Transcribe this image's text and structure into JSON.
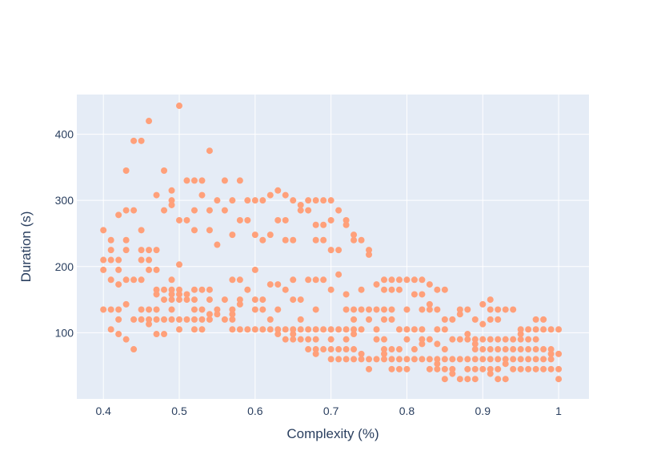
{
  "chart_data": {
    "type": "scatter",
    "title": "",
    "xlabel": "Complexity (%)",
    "ylabel": "Duration (s)",
    "xlim": [
      0.365,
      1.04
    ],
    "ylim": [
      0,
      460
    ],
    "x_ticks": [
      0.4,
      0.5,
      0.6,
      0.7,
      0.8,
      0.9,
      1
    ],
    "x_tick_labels": [
      "0.4",
      "0.5",
      "0.6",
      "0.7",
      "0.8",
      "0.9",
      "1"
    ],
    "y_ticks": [
      100,
      200,
      300,
      400
    ],
    "y_tick_labels": [
      "100",
      "200",
      "300",
      "400"
    ],
    "grid": true,
    "legend": "none",
    "colors": {
      "background": "#e5ecf6",
      "grid": "#ffffff",
      "marker": "#FFA07A",
      "text": "#2a3f5f"
    },
    "points": [
      [
        0.4,
        255
      ],
      [
        0.4,
        210
      ],
      [
        0.4,
        195
      ],
      [
        0.4,
        135
      ],
      [
        0.41,
        240
      ],
      [
        0.41,
        225
      ],
      [
        0.41,
        210
      ],
      [
        0.41,
        180
      ],
      [
        0.41,
        135
      ],
      [
        0.41,
        105
      ],
      [
        0.42,
        278
      ],
      [
        0.42,
        210
      ],
      [
        0.42,
        195
      ],
      [
        0.42,
        173
      ],
      [
        0.42,
        135
      ],
      [
        0.42,
        120
      ],
      [
        0.42,
        98
      ],
      [
        0.43,
        345
      ],
      [
        0.43,
        285
      ],
      [
        0.43,
        240
      ],
      [
        0.43,
        225
      ],
      [
        0.43,
        180
      ],
      [
        0.43,
        143
      ],
      [
        0.43,
        90
      ],
      [
        0.44,
        390
      ],
      [
        0.44,
        285
      ],
      [
        0.44,
        180
      ],
      [
        0.44,
        120
      ],
      [
        0.44,
        75
      ],
      [
        0.45,
        390
      ],
      [
        0.45,
        255
      ],
      [
        0.45,
        225
      ],
      [
        0.45,
        210
      ],
      [
        0.45,
        180
      ],
      [
        0.45,
        135
      ],
      [
        0.45,
        120
      ],
      [
        0.46,
        420
      ],
      [
        0.46,
        225
      ],
      [
        0.46,
        210
      ],
      [
        0.46,
        195
      ],
      [
        0.46,
        135
      ],
      [
        0.46,
        120
      ],
      [
        0.46,
        113
      ],
      [
        0.47,
        308
      ],
      [
        0.47,
        225
      ],
      [
        0.47,
        195
      ],
      [
        0.47,
        165
      ],
      [
        0.47,
        158
      ],
      [
        0.47,
        135
      ],
      [
        0.47,
        120
      ],
      [
        0.47,
        98
      ],
      [
        0.48,
        345
      ],
      [
        0.48,
        285
      ],
      [
        0.48,
        165
      ],
      [
        0.48,
        150
      ],
      [
        0.48,
        120
      ],
      [
        0.48,
        98
      ],
      [
        0.49,
        315
      ],
      [
        0.49,
        300
      ],
      [
        0.49,
        293
      ],
      [
        0.49,
        180
      ],
      [
        0.49,
        165
      ],
      [
        0.49,
        158
      ],
      [
        0.49,
        150
      ],
      [
        0.49,
        135
      ],
      [
        0.49,
        120
      ],
      [
        0.5,
        443
      ],
      [
        0.5,
        270
      ],
      [
        0.5,
        203
      ],
      [
        0.5,
        165
      ],
      [
        0.5,
        158
      ],
      [
        0.5,
        150
      ],
      [
        0.5,
        120
      ],
      [
        0.5,
        105
      ],
      [
        0.51,
        330
      ],
      [
        0.51,
        270
      ],
      [
        0.51,
        158
      ],
      [
        0.51,
        150
      ],
      [
        0.51,
        120
      ],
      [
        0.52,
        330
      ],
      [
        0.52,
        285
      ],
      [
        0.52,
        255
      ],
      [
        0.52,
        165
      ],
      [
        0.52,
        150
      ],
      [
        0.52,
        135
      ],
      [
        0.52,
        120
      ],
      [
        0.52,
        105
      ],
      [
        0.53,
        330
      ],
      [
        0.53,
        308
      ],
      [
        0.53,
        165
      ],
      [
        0.53,
        135
      ],
      [
        0.53,
        120
      ],
      [
        0.53,
        105
      ],
      [
        0.54,
        375
      ],
      [
        0.54,
        285
      ],
      [
        0.54,
        255
      ],
      [
        0.54,
        165
      ],
      [
        0.54,
        150
      ],
      [
        0.54,
        128
      ],
      [
        0.54,
        120
      ],
      [
        0.55,
        300
      ],
      [
        0.55,
        233
      ],
      [
        0.55,
        135
      ],
      [
        0.55,
        128
      ],
      [
        0.56,
        330
      ],
      [
        0.56,
        285
      ],
      [
        0.56,
        150
      ],
      [
        0.56,
        120
      ],
      [
        0.57,
        300
      ],
      [
        0.57,
        248
      ],
      [
        0.57,
        180
      ],
      [
        0.57,
        135
      ],
      [
        0.57,
        128
      ],
      [
        0.57,
        120
      ],
      [
        0.57,
        105
      ],
      [
        0.58,
        330
      ],
      [
        0.58,
        270
      ],
      [
        0.58,
        180
      ],
      [
        0.58,
        150
      ],
      [
        0.58,
        143
      ],
      [
        0.58,
        105
      ],
      [
        0.59,
        300
      ],
      [
        0.59,
        270
      ],
      [
        0.59,
        165
      ],
      [
        0.59,
        105
      ],
      [
        0.6,
        300
      ],
      [
        0.6,
        248
      ],
      [
        0.6,
        195
      ],
      [
        0.6,
        150
      ],
      [
        0.6,
        135
      ],
      [
        0.6,
        105
      ],
      [
        0.61,
        300
      ],
      [
        0.61,
        240
      ],
      [
        0.61,
        150
      ],
      [
        0.61,
        135
      ],
      [
        0.61,
        105
      ],
      [
        0.62,
        308
      ],
      [
        0.62,
        248
      ],
      [
        0.62,
        173
      ],
      [
        0.62,
        120
      ],
      [
        0.62,
        105
      ],
      [
        0.63,
        315
      ],
      [
        0.63,
        270
      ],
      [
        0.63,
        173
      ],
      [
        0.63,
        135
      ],
      [
        0.63,
        105
      ],
      [
        0.63,
        98
      ],
      [
        0.64,
        308
      ],
      [
        0.64,
        270
      ],
      [
        0.64,
        240
      ],
      [
        0.64,
        165
      ],
      [
        0.64,
        105
      ],
      [
        0.64,
        90
      ],
      [
        0.65,
        300
      ],
      [
        0.65,
        240
      ],
      [
        0.65,
        180
      ],
      [
        0.65,
        150
      ],
      [
        0.65,
        105
      ],
      [
        0.65,
        98
      ],
      [
        0.65,
        90
      ],
      [
        0.66,
        293
      ],
      [
        0.66,
        285
      ],
      [
        0.66,
        150
      ],
      [
        0.66,
        120
      ],
      [
        0.66,
        105
      ],
      [
        0.66,
        90
      ],
      [
        0.67,
        300
      ],
      [
        0.67,
        285
      ],
      [
        0.67,
        180
      ],
      [
        0.67,
        105
      ],
      [
        0.67,
        90
      ],
      [
        0.67,
        75
      ],
      [
        0.68,
        300
      ],
      [
        0.68,
        263
      ],
      [
        0.68,
        240
      ],
      [
        0.68,
        180
      ],
      [
        0.68,
        135
      ],
      [
        0.68,
        105
      ],
      [
        0.68,
        90
      ],
      [
        0.68,
        75
      ],
      [
        0.68,
        68
      ],
      [
        0.69,
        300
      ],
      [
        0.69,
        263
      ],
      [
        0.69,
        240
      ],
      [
        0.69,
        180
      ],
      [
        0.69,
        105
      ],
      [
        0.69,
        75
      ],
      [
        0.7,
        300
      ],
      [
        0.7,
        270
      ],
      [
        0.7,
        225
      ],
      [
        0.7,
        165
      ],
      [
        0.7,
        105
      ],
      [
        0.7,
        90
      ],
      [
        0.7,
        75
      ],
      [
        0.7,
        60
      ],
      [
        0.71,
        285
      ],
      [
        0.71,
        225
      ],
      [
        0.71,
        188
      ],
      [
        0.71,
        105
      ],
      [
        0.71,
        75
      ],
      [
        0.71,
        60
      ],
      [
        0.72,
        270
      ],
      [
        0.72,
        263
      ],
      [
        0.72,
        158
      ],
      [
        0.72,
        135
      ],
      [
        0.72,
        105
      ],
      [
        0.72,
        90
      ],
      [
        0.72,
        75
      ],
      [
        0.72,
        60
      ],
      [
        0.73,
        248
      ],
      [
        0.73,
        240
      ],
      [
        0.73,
        135
      ],
      [
        0.73,
        120
      ],
      [
        0.73,
        105
      ],
      [
        0.73,
        98
      ],
      [
        0.73,
        75
      ],
      [
        0.73,
        60
      ],
      [
        0.74,
        240
      ],
      [
        0.74,
        165
      ],
      [
        0.74,
        135
      ],
      [
        0.74,
        105
      ],
      [
        0.74,
        68
      ],
      [
        0.74,
        60
      ],
      [
        0.75,
        225
      ],
      [
        0.75,
        218
      ],
      [
        0.75,
        135
      ],
      [
        0.75,
        120
      ],
      [
        0.75,
        60
      ],
      [
        0.75,
        45
      ],
      [
        0.76,
        173
      ],
      [
        0.76,
        135
      ],
      [
        0.76,
        105
      ],
      [
        0.76,
        90
      ],
      [
        0.76,
        60
      ],
      [
        0.77,
        180
      ],
      [
        0.77,
        165
      ],
      [
        0.77,
        135
      ],
      [
        0.77,
        120
      ],
      [
        0.77,
        90
      ],
      [
        0.77,
        75
      ],
      [
        0.77,
        68
      ],
      [
        0.77,
        60
      ],
      [
        0.78,
        180
      ],
      [
        0.78,
        165
      ],
      [
        0.78,
        135
      ],
      [
        0.78,
        120
      ],
      [
        0.78,
        75
      ],
      [
        0.78,
        60
      ],
      [
        0.78,
        45
      ],
      [
        0.79,
        180
      ],
      [
        0.79,
        165
      ],
      [
        0.79,
        105
      ],
      [
        0.79,
        75
      ],
      [
        0.79,
        60
      ],
      [
        0.79,
        45
      ],
      [
        0.8,
        180
      ],
      [
        0.8,
        135
      ],
      [
        0.8,
        105
      ],
      [
        0.8,
        90
      ],
      [
        0.8,
        60
      ],
      [
        0.8,
        45
      ],
      [
        0.81,
        180
      ],
      [
        0.81,
        158
      ],
      [
        0.81,
        105
      ],
      [
        0.81,
        75
      ],
      [
        0.81,
        60
      ],
      [
        0.82,
        180
      ],
      [
        0.82,
        158
      ],
      [
        0.82,
        135
      ],
      [
        0.82,
        105
      ],
      [
        0.82,
        90
      ],
      [
        0.82,
        83
      ],
      [
        0.82,
        60
      ],
      [
        0.83,
        173
      ],
      [
        0.83,
        143
      ],
      [
        0.83,
        135
      ],
      [
        0.83,
        90
      ],
      [
        0.83,
        60
      ],
      [
        0.83,
        45
      ],
      [
        0.84,
        165
      ],
      [
        0.84,
        135
      ],
      [
        0.84,
        105
      ],
      [
        0.84,
        83
      ],
      [
        0.84,
        60
      ],
      [
        0.84,
        53
      ],
      [
        0.84,
        45
      ],
      [
        0.85,
        165
      ],
      [
        0.85,
        120
      ],
      [
        0.85,
        105
      ],
      [
        0.85,
        75
      ],
      [
        0.85,
        60
      ],
      [
        0.85,
        45
      ],
      [
        0.85,
        30
      ],
      [
        0.86,
        120
      ],
      [
        0.86,
        90
      ],
      [
        0.86,
        60
      ],
      [
        0.86,
        45
      ],
      [
        0.86,
        38
      ],
      [
        0.87,
        135
      ],
      [
        0.87,
        128
      ],
      [
        0.87,
        90
      ],
      [
        0.87,
        60
      ],
      [
        0.87,
        30
      ],
      [
        0.88,
        135
      ],
      [
        0.88,
        98
      ],
      [
        0.88,
        90
      ],
      [
        0.88,
        60
      ],
      [
        0.88,
        45
      ],
      [
        0.88,
        30
      ],
      [
        0.89,
        120
      ],
      [
        0.89,
        90
      ],
      [
        0.89,
        83
      ],
      [
        0.89,
        75
      ],
      [
        0.89,
        60
      ],
      [
        0.89,
        45
      ],
      [
        0.89,
        30
      ],
      [
        0.9,
        143
      ],
      [
        0.9,
        113
      ],
      [
        0.9,
        90
      ],
      [
        0.9,
        75
      ],
      [
        0.9,
        60
      ],
      [
        0.9,
        45
      ],
      [
        0.91,
        150
      ],
      [
        0.91,
        135
      ],
      [
        0.91,
        120
      ],
      [
        0.91,
        90
      ],
      [
        0.91,
        75
      ],
      [
        0.91,
        60
      ],
      [
        0.91,
        45
      ],
      [
        0.91,
        38
      ],
      [
        0.92,
        135
      ],
      [
        0.92,
        120
      ],
      [
        0.92,
        90
      ],
      [
        0.92,
        75
      ],
      [
        0.92,
        60
      ],
      [
        0.92,
        45
      ],
      [
        0.92,
        30
      ],
      [
        0.93,
        135
      ],
      [
        0.93,
        90
      ],
      [
        0.93,
        75
      ],
      [
        0.93,
        60
      ],
      [
        0.93,
        53
      ],
      [
        0.93,
        30
      ],
      [
        0.94,
        135
      ],
      [
        0.94,
        90
      ],
      [
        0.94,
        75
      ],
      [
        0.94,
        60
      ],
      [
        0.94,
        45
      ],
      [
        0.95,
        105
      ],
      [
        0.95,
        98
      ],
      [
        0.95,
        90
      ],
      [
        0.95,
        75
      ],
      [
        0.95,
        60
      ],
      [
        0.95,
        45
      ],
      [
        0.96,
        105
      ],
      [
        0.96,
        90
      ],
      [
        0.96,
        75
      ],
      [
        0.96,
        60
      ],
      [
        0.96,
        45
      ],
      [
        0.97,
        120
      ],
      [
        0.97,
        105
      ],
      [
        0.97,
        90
      ],
      [
        0.97,
        75
      ],
      [
        0.97,
        60
      ],
      [
        0.97,
        45
      ],
      [
        0.98,
        120
      ],
      [
        0.98,
        105
      ],
      [
        0.98,
        75
      ],
      [
        0.98,
        60
      ],
      [
        0.98,
        45
      ],
      [
        0.99,
        105
      ],
      [
        0.99,
        75
      ],
      [
        0.99,
        68
      ],
      [
        0.99,
        60
      ],
      [
        0.99,
        45
      ],
      [
        1,
        105
      ],
      [
        1,
        68
      ],
      [
        1,
        45
      ],
      [
        1,
        30
      ]
    ]
  }
}
